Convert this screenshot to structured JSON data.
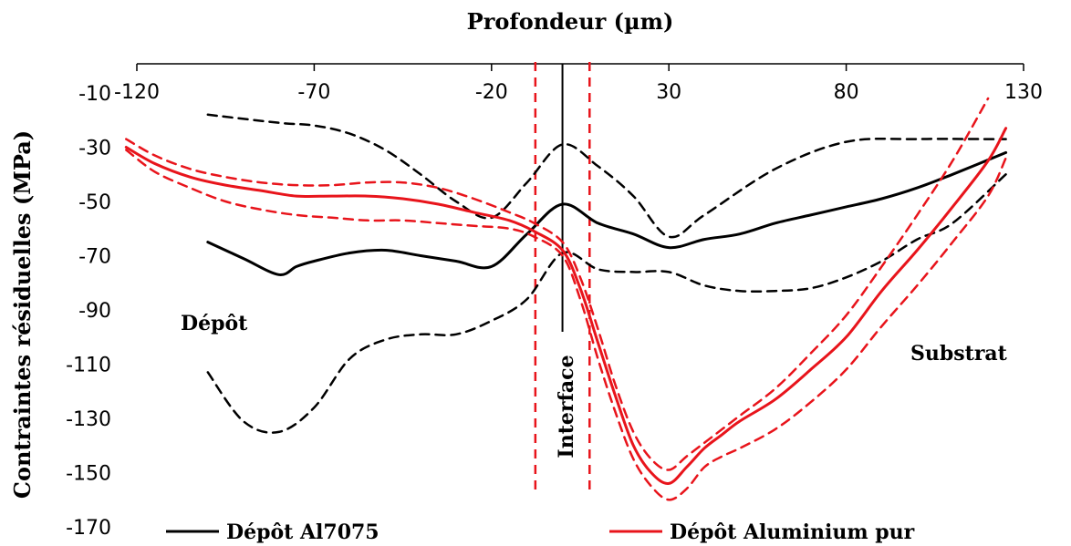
{
  "chart_data": {
    "type": "line",
    "title": "",
    "xlabel": "Profondeur (µm)",
    "ylabel": "Contraintes résiduelles (MPa)",
    "x_axis_position": "top",
    "xlim": [
      -120,
      130
    ],
    "ylim": [
      -170,
      -10
    ],
    "xticks": [
      -120,
      -70,
      -20,
      30,
      80,
      130
    ],
    "yticks": [
      -10,
      -30,
      -50,
      -70,
      -90,
      -110,
      -130,
      -150,
      -170
    ],
    "grid": false,
    "legend_position": "bottom",
    "colors": {
      "al7075": "#000000",
      "alu_pur": "#e8141b"
    },
    "annotations": {
      "depot": "Dépôt",
      "substrat": "Substrat",
      "interface": "Interface"
    },
    "interface_x": 0,
    "interface_band": [
      -2.5,
      2.5
    ],
    "series": [
      {
        "name": "Dépôt Al7075",
        "color": "#000000",
        "dash": "solid",
        "x": [
          -100,
          -90,
          -80,
          -75,
          -70,
          -60,
          -50,
          -40,
          -30,
          -20,
          -10,
          0,
          10,
          20,
          30,
          40,
          50,
          60,
          70,
          80,
          90,
          100,
          110,
          125
        ],
        "y": [
          -65,
          -71,
          -77,
          -74,
          -72,
          -69,
          -68,
          -70,
          -72,
          -74,
          -62,
          -51,
          -58,
          -62,
          -67,
          -64,
          -62,
          -58,
          -55,
          -52,
          -49,
          -45,
          -40,
          -32
        ]
      },
      {
        "name": "Dépôt Al7075 (borne supérieure)",
        "color": "#000000",
        "dash": "dashed",
        "x": [
          -100,
          -80,
          -70,
          -60,
          -50,
          -40,
          -30,
          -20,
          -10,
          0,
          10,
          20,
          30,
          40,
          60,
          80,
          100,
          120,
          125
        ],
        "y": [
          -18,
          -21,
          -22,
          -25,
          -31,
          -40,
          -50,
          -56,
          -43,
          -29,
          -37,
          -48,
          -63,
          -55,
          -38,
          -28,
          -27,
          -27,
          -27
        ]
      },
      {
        "name": "Dépôt Al7075 (borne inférieure)",
        "color": "#000000",
        "dash": "dashed",
        "x": [
          -100,
          -90,
          -80,
          -70,
          -60,
          -50,
          -40,
          -30,
          -20,
          -10,
          0,
          10,
          20,
          30,
          40,
          50,
          60,
          70,
          80,
          90,
          100,
          110,
          125
        ],
        "y": [
          -113,
          -131,
          -135,
          -126,
          -108,
          -101,
          -99,
          -99,
          -94,
          -86,
          -69,
          -75,
          -76,
          -76,
          -81,
          -83,
          -83,
          -82,
          -78,
          -72,
          -64,
          -58,
          -40
        ]
      },
      {
        "name": "Dépôt Aluminium pur",
        "color": "#e8141b",
        "dash": "solid",
        "x": [
          -123,
          -115,
          -105,
          -95,
          -85,
          -75,
          -65,
          -55,
          -45,
          -35,
          -25,
          -15,
          -8,
          0,
          5,
          10,
          15,
          20,
          25,
          30,
          35,
          40,
          45,
          50,
          60,
          70,
          80,
          90,
          100,
          110,
          120,
          125
        ],
        "y": [
          -30,
          -36,
          -41,
          -44,
          -46,
          -48,
          -48,
          -48,
          -49,
          -51,
          -54,
          -57,
          -61,
          -68,
          -82,
          -102,
          -122,
          -140,
          -150,
          -154,
          -148,
          -141,
          -136,
          -131,
          -123,
          -112,
          -100,
          -83,
          -68,
          -52,
          -35,
          -23
        ]
      },
      {
        "name": "Dépôt Aluminium pur (borne supérieure)",
        "color": "#e8141b",
        "dash": "dashed",
        "x": [
          -123,
          -115,
          -105,
          -95,
          -85,
          -75,
          -65,
          -55,
          -45,
          -35,
          -25,
          -15,
          -8,
          0,
          5,
          10,
          15,
          20,
          25,
          30,
          35,
          40,
          45,
          50,
          60,
          70,
          80,
          90,
          100,
          110,
          120
        ],
        "y": [
          -27,
          -33,
          -38,
          -41,
          -43,
          -44,
          -44,
          -43,
          -43,
          -45,
          -49,
          -54,
          -58,
          -65,
          -78,
          -97,
          -118,
          -135,
          -145,
          -149,
          -144,
          -139,
          -134,
          -129,
          -119,
          -106,
          -92,
          -74,
          -55,
          -35,
          -12
        ]
      },
      {
        "name": "Dépôt Aluminium pur (borne inférieure)",
        "color": "#e8141b",
        "dash": "dashed",
        "x": [
          -123,
          -115,
          -105,
          -95,
          -85,
          -75,
          -65,
          -55,
          -45,
          -35,
          -25,
          -15,
          -8,
          0,
          5,
          10,
          15,
          20,
          25,
          30,
          35,
          40,
          45,
          50,
          60,
          70,
          80,
          90,
          100,
          110,
          120,
          125
        ],
        "y": [
          -31,
          -39,
          -45,
          -50,
          -53,
          -55,
          -56,
          -57,
          -57,
          -58,
          -59,
          -60,
          -63,
          -70,
          -86,
          -108,
          -128,
          -145,
          -155,
          -160,
          -156,
          -148,
          -144,
          -141,
          -134,
          -124,
          -112,
          -96,
          -81,
          -65,
          -48,
          -34
        ]
      }
    ],
    "legend": [
      {
        "label": "Dépôt Al7075",
        "color": "#000000"
      },
      {
        "label": "Dépôt Aluminium pur",
        "color": "#e8141b"
      }
    ]
  }
}
